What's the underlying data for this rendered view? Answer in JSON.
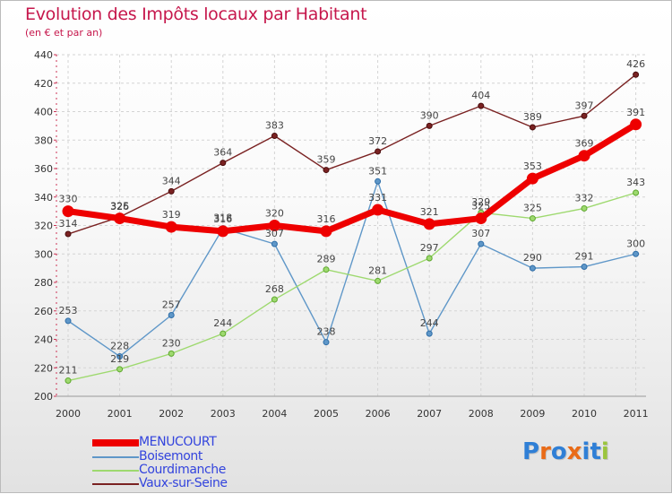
{
  "header": {
    "title": "Evolution des Impôts locaux par Habitant",
    "subtitle": "(en € et par an)"
  },
  "chart_data": {
    "type": "line",
    "title": "Evolution des Impôts locaux par Habitant",
    "subtitle": "(en € et par an)",
    "xlabel": "",
    "ylabel": "",
    "ylim": [
      200,
      440
    ],
    "yticks": [
      200,
      220,
      240,
      260,
      280,
      300,
      320,
      340,
      360,
      380,
      400,
      420,
      440
    ],
    "grid": true,
    "categories": [
      "2000",
      "2001",
      "2002",
      "2003",
      "2004",
      "2005",
      "2006",
      "2007",
      "2008",
      "2009",
      "2010",
      "2011"
    ],
    "series": [
      {
        "name": "Vaux-sur-Seine",
        "color": "#7a2222",
        "values": [
          314,
          326,
          344,
          364,
          383,
          359,
          372,
          390,
          404,
          389,
          397,
          426
        ]
      },
      {
        "name": "Boisemont",
        "color": "#5f97c8",
        "values": [
          253,
          228,
          257,
          318,
          307,
          238,
          351,
          244,
          307,
          290,
          291,
          300
        ]
      },
      {
        "name": "Courdimanche",
        "color": "#9ed96f",
        "values": [
          211,
          219,
          230,
          244,
          268,
          289,
          281,
          297,
          329,
          325,
          332,
          343
        ]
      },
      {
        "name": "MENUCOURT",
        "color": "#ee0000",
        "values": [
          330,
          325,
          319,
          316,
          320,
          316,
          331,
          321,
          325,
          353,
          369,
          391
        ]
      }
    ]
  },
  "legend": {
    "items": [
      {
        "label": "MENUCOURT",
        "color": "#ee0000",
        "text_color": "#3344dd"
      },
      {
        "label": "Boisemont",
        "color": "#5f97c8",
        "text_color": "#3344dd"
      },
      {
        "label": "Courdimanche",
        "color": "#9ed96f",
        "text_color": "#3344dd"
      },
      {
        "label": "Vaux-sur-Seine",
        "color": "#7a2222",
        "text_color": "#3344dd"
      }
    ]
  },
  "logo": {
    "text": "Proxiti",
    "colors": [
      "#2f7fd6",
      "#e96b18",
      "#2f7fd6",
      "#e96b18",
      "#2f7fd6",
      "#2f7fd6",
      "#9bc53d"
    ]
  }
}
